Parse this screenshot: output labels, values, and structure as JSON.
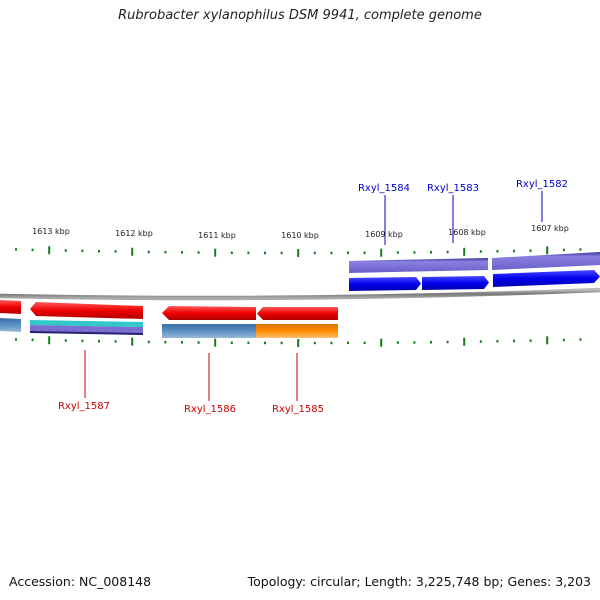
{
  "title": "Rubrobacter xylanophilus DSM 9941, complete genome",
  "footer": {
    "accession": "Accession: NC_008148",
    "summary": "Topology: circular; Length: 3,225,748 bp; Genes: 3,203"
  },
  "ticks": [
    "1613 kbp",
    "1612 kbp",
    "1611 kbp",
    "1610 kbp",
    "1609 kbp",
    "1608 kbp",
    "1607 kbp"
  ],
  "genes": [
    {
      "label": "Rxyl_1584",
      "color": "#0000cc"
    },
    {
      "label": "Rxyl_1583",
      "color": "#0000cc"
    },
    {
      "label": "Rxyl_1582",
      "color": "#0000cc"
    },
    {
      "label": "Rxyl_1587",
      "color": "#cc0000"
    },
    {
      "label": "Rxyl_1586",
      "color": "#cc0000"
    },
    {
      "label": "Rxyl_1585",
      "color": "#cc0000"
    }
  ],
  "colors": {
    "forward_cds": "#0000ee",
    "reverse_cds": "#ee0000",
    "forward_gene_bar": "#7a6fd0",
    "reverse_gene_bar": "#4a7fb5",
    "orange_bar": "#ff8c00",
    "cyan_bar": "#30c0c0",
    "backbone": "#888888",
    "tick_marks": "#1a7a1a"
  }
}
